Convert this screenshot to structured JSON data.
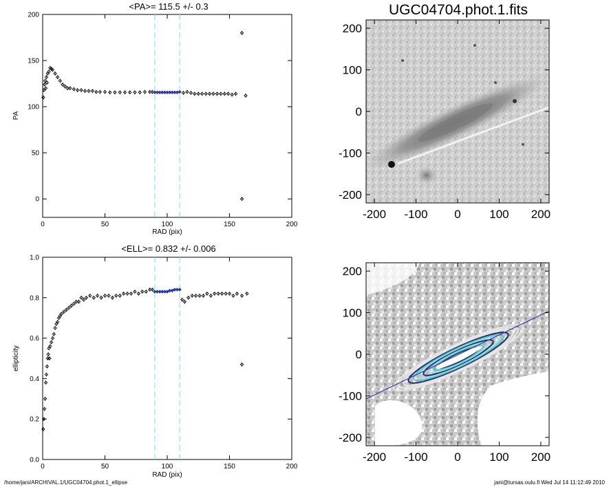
{
  "footer": {
    "left": "/home/jani/ARCHIVAL.1/UGC04704.phot.1_ellipse",
    "right": "jani@tursas.oulu.fi  Wed Jul 14 11:12:49 2010"
  },
  "colors": {
    "guide_line": "#7fe5ff",
    "highlight": "#2b3a9c",
    "marker": "#000000",
    "axis": "#000000"
  },
  "chart_data": [
    {
      "type": "scatter",
      "title": "<PA>= 115.5 +/-   0.3",
      "xlabel": "RAD (pix)",
      "ylabel": "PA",
      "xlim": [
        0,
        200
      ],
      "ylim": [
        -20,
        200
      ],
      "xticks": [
        0,
        50,
        100,
        150,
        200
      ],
      "yticks": [
        0,
        50,
        100,
        150,
        200
      ],
      "vlines": [
        90,
        110
      ],
      "highlight_range": [
        90,
        110
      ],
      "points": [
        [
          0.5,
          110
        ],
        [
          1,
          118
        ],
        [
          1.5,
          124
        ],
        [
          2,
          128
        ],
        [
          2.5,
          120
        ],
        [
          3,
          132
        ],
        [
          3.5,
          126
        ],
        [
          4,
          136
        ],
        [
          5,
          138
        ],
        [
          6,
          142
        ],
        [
          7,
          141
        ],
        [
          8,
          140
        ],
        [
          10,
          136
        ],
        [
          12,
          132
        ],
        [
          14,
          128
        ],
        [
          16,
          124
        ],
        [
          18,
          122
        ],
        [
          20,
          120
        ],
        [
          22,
          120
        ],
        [
          25,
          119
        ],
        [
          28,
          118
        ],
        [
          31,
          118
        ],
        [
          34,
          117
        ],
        [
          37,
          117
        ],
        [
          40,
          117
        ],
        [
          43,
          116
        ],
        [
          46,
          116
        ],
        [
          50,
          116
        ],
        [
          54,
          115.5
        ],
        [
          58,
          115.5
        ],
        [
          62,
          115.5
        ],
        [
          66,
          115.5
        ],
        [
          70,
          115.5
        ],
        [
          74,
          115.5
        ],
        [
          78,
          115.5
        ],
        [
          82,
          116
        ],
        [
          86,
          116
        ],
        [
          88,
          116
        ],
        [
          90,
          115.5
        ],
        [
          92,
          115.5
        ],
        [
          94,
          115.5
        ],
        [
          96,
          115.5
        ],
        [
          98,
          115.5
        ],
        [
          100,
          115.5
        ],
        [
          102,
          115.5
        ],
        [
          104,
          115.5
        ],
        [
          106,
          115.5
        ],
        [
          108,
          115.5
        ],
        [
          110,
          116
        ],
        [
          113,
          115
        ],
        [
          116,
          116
        ],
        [
          119,
          115
        ],
        [
          122,
          114
        ],
        [
          125,
          114
        ],
        [
          128,
          114
        ],
        [
          131,
          114
        ],
        [
          134,
          114
        ],
        [
          137,
          114
        ],
        [
          140,
          114
        ],
        [
          143,
          114
        ],
        [
          146,
          114
        ],
        [
          149,
          114
        ],
        [
          152,
          113
        ],
        [
          155,
          114
        ],
        [
          160,
          180
        ],
        [
          160,
          0
        ],
        [
          163,
          112
        ]
      ]
    },
    {
      "type": "scatter",
      "title": "<ELL>= 0.832 +/-  0.006",
      "xlabel": "RAD (pix)",
      "ylabel": "ellipticity",
      "xlim": [
        0,
        200
      ],
      "ylim": [
        0.0,
        1.0
      ],
      "xticks": [
        0,
        50,
        100,
        150,
        200
      ],
      "yticks": [
        "0.0",
        "0.2",
        "0.4",
        "0.6",
        "0.8",
        "1.0"
      ],
      "vlines": [
        90,
        110
      ],
      "highlight_range": [
        90,
        110
      ],
      "points": [
        [
          0.5,
          0.15
        ],
        [
          1,
          0.2
        ],
        [
          1.5,
          0.25
        ],
        [
          2,
          0.3
        ],
        [
          2.5,
          0.38
        ],
        [
          3,
          0.42
        ],
        [
          3.5,
          0.46
        ],
        [
          4,
          0.5
        ],
        [
          4.5,
          0.52
        ],
        [
          5,
          0.55
        ],
        [
          5.5,
          0.5
        ],
        [
          6,
          0.56
        ],
        [
          7,
          0.58
        ],
        [
          8,
          0.6
        ],
        [
          9,
          0.62
        ],
        [
          10,
          0.65
        ],
        [
          11,
          0.67
        ],
        [
          12,
          0.68
        ],
        [
          13,
          0.7
        ],
        [
          14,
          0.71
        ],
        [
          15,
          0.72
        ],
        [
          17,
          0.73
        ],
        [
          19,
          0.74
        ],
        [
          21,
          0.75
        ],
        [
          23,
          0.76
        ],
        [
          25,
          0.77
        ],
        [
          27,
          0.78
        ],
        [
          29,
          0.78
        ],
        [
          31,
          0.8
        ],
        [
          33,
          0.79
        ],
        [
          35,
          0.8
        ],
        [
          38,
          0.81
        ],
        [
          41,
          0.8
        ],
        [
          44,
          0.81
        ],
        [
          47,
          0.8
        ],
        [
          50,
          0.81
        ],
        [
          53,
          0.81
        ],
        [
          56,
          0.8
        ],
        [
          59,
          0.81
        ],
        [
          62,
          0.81
        ],
        [
          65,
          0.82
        ],
        [
          68,
          0.82
        ],
        [
          71,
          0.82
        ],
        [
          74,
          0.83
        ],
        [
          77,
          0.82
        ],
        [
          80,
          0.83
        ],
        [
          83,
          0.83
        ],
        [
          86,
          0.84
        ],
        [
          88,
          0.84
        ],
        [
          90,
          0.83
        ],
        [
          92,
          0.83
        ],
        [
          94,
          0.83
        ],
        [
          96,
          0.83
        ],
        [
          98,
          0.83
        ],
        [
          100,
          0.83
        ],
        [
          102,
          0.835
        ],
        [
          104,
          0.835
        ],
        [
          106,
          0.84
        ],
        [
          108,
          0.84
        ],
        [
          110,
          0.84
        ],
        [
          112,
          0.79
        ],
        [
          114,
          0.78
        ],
        [
          117,
          0.8
        ],
        [
          120,
          0.81
        ],
        [
          123,
          0.81
        ],
        [
          126,
          0.81
        ],
        [
          129,
          0.81
        ],
        [
          132,
          0.82
        ],
        [
          135,
          0.81
        ],
        [
          138,
          0.82
        ],
        [
          141,
          0.82
        ],
        [
          144,
          0.82
        ],
        [
          147,
          0.82
        ],
        [
          150,
          0.82
        ],
        [
          153,
          0.81
        ],
        [
          156,
          0.82
        ],
        [
          160,
          0.47
        ],
        [
          160,
          0.81
        ],
        [
          164,
          0.82
        ]
      ]
    },
    {
      "type": "heatmap",
      "title": "UGC04704.phot.1.fits",
      "xlim": [
        -220,
        220
      ],
      "ylim": [
        -220,
        220
      ],
      "xticks": [
        -200,
        -100,
        0,
        100,
        200
      ],
      "yticks": [
        -200,
        -100,
        0,
        100,
        200
      ],
      "description_values": {
        "galaxy_pa_deg": 115.5,
        "galaxy_ellipticity": 0.832
      }
    },
    {
      "type": "heatmap",
      "title": "",
      "xlim": [
        -220,
        220
      ],
      "ylim": [
        -220,
        220
      ],
      "xticks": [
        -200,
        -100,
        0,
        100,
        200
      ],
      "yticks": [
        -200,
        -100,
        0,
        100,
        200
      ],
      "isophote_count": 12,
      "pa_line_deg": 115.5
    }
  ]
}
